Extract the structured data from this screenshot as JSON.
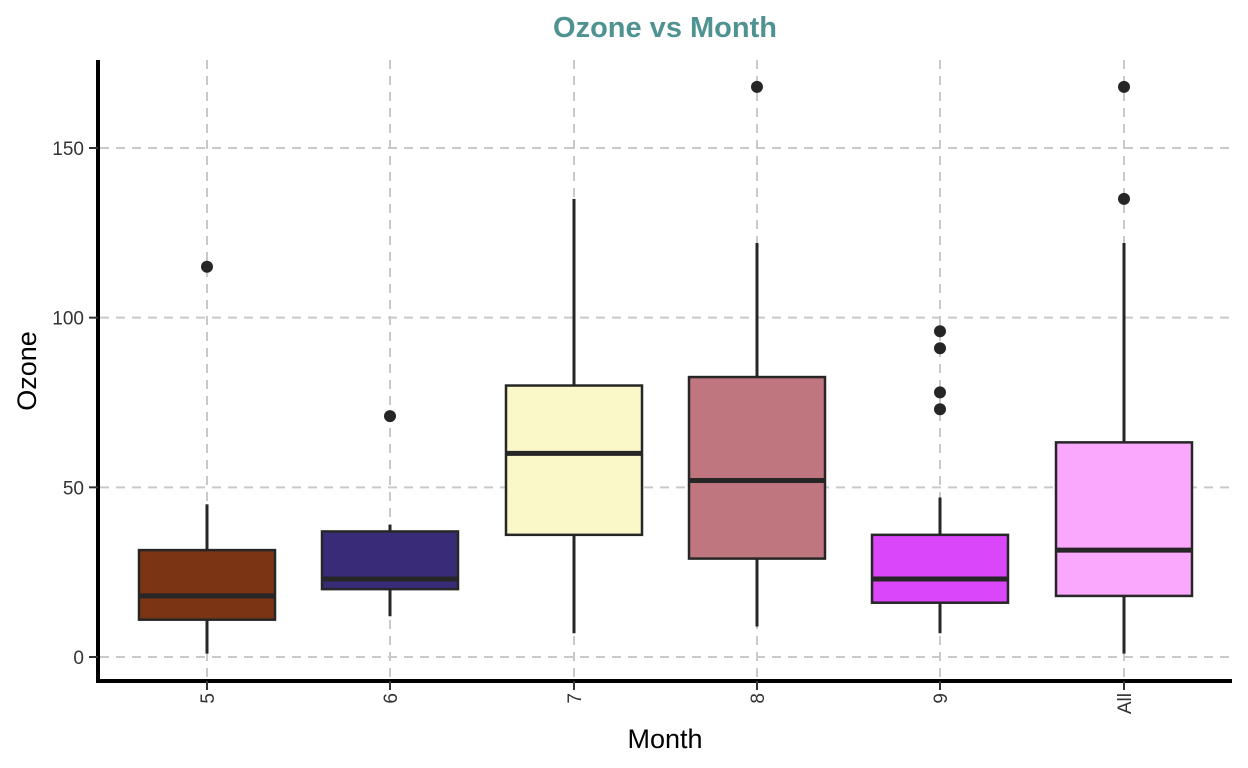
{
  "chart_data": {
    "type": "boxplot",
    "title": "Ozone vs Month",
    "xlabel": "Month",
    "ylabel": "Ozone",
    "categories": [
      "5",
      "6",
      "7",
      "8",
      "9",
      "All"
    ],
    "y_ticks": [
      0,
      50,
      100,
      150
    ],
    "ylim": [
      -7,
      176
    ],
    "grid": true,
    "boxes": [
      {
        "category": "5",
        "min": 1,
        "q1": 11,
        "median": 18,
        "q3": 31.5,
        "max": 45,
        "outliers": [
          115
        ],
        "color": "#7B3514"
      },
      {
        "category": "6",
        "min": 12,
        "q1": 20,
        "median": 23,
        "q3": 37,
        "max": 39,
        "outliers": [
          71
        ],
        "color": "#3A2B79"
      },
      {
        "category": "7",
        "min": 7,
        "q1": 36,
        "median": 60,
        "q3": 80,
        "max": 135,
        "outliers": [],
        "color": "#FAF8C8"
      },
      {
        "category": "8",
        "min": 9,
        "q1": 29,
        "median": 52,
        "q3": 82.5,
        "max": 122,
        "outliers": [
          168
        ],
        "color": "#C0767F"
      },
      {
        "category": "9",
        "min": 7,
        "q1": 16,
        "median": 23,
        "q3": 36,
        "max": 47,
        "outliers": [
          73,
          78,
          91,
          96
        ],
        "color": "#DA46FA"
      },
      {
        "category": "All",
        "min": 1,
        "q1": 18,
        "median": 31.5,
        "q3": 63.25,
        "max": 122,
        "outliers": [
          135,
          168
        ],
        "color": "#F9A8FD"
      }
    ],
    "title_color": "#4E9391",
    "box_outline_color": "#262626"
  }
}
